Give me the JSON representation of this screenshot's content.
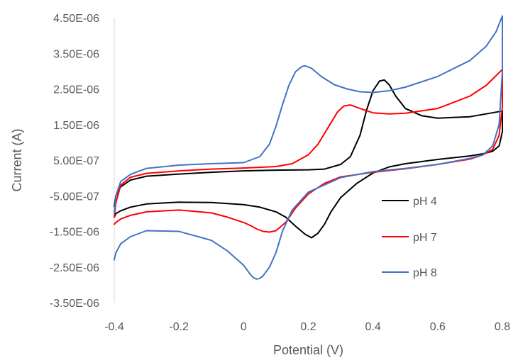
{
  "chart_data": {
    "type": "line",
    "title": "",
    "xlabel": "Potential (V)",
    "ylabel": "Current (A)",
    "xlim": [
      -0.4,
      0.8
    ],
    "ylim": [
      -3.5e-06,
      4.5e-06
    ],
    "x_ticks": [
      "-0.4",
      "-0.2",
      "0",
      "0.2",
      "0.4",
      "0.6",
      "0.8"
    ],
    "x_tick_values": [
      -0.4,
      -0.2,
      0,
      0.2,
      0.4,
      0.6,
      0.8
    ],
    "y_ticks": [
      "-3.50E-06",
      "-2.50E-06",
      "-1.50E-06",
      "-5.00E-07",
      "5.00E-07",
      "1.50E-06",
      "2.50E-06",
      "3.50E-06",
      "4.50E-06"
    ],
    "y_tick_values": [
      -3.5e-06,
      -2.5e-06,
      -1.5e-06,
      -5e-07,
      5e-07,
      1.5e-06,
      2.5e-06,
      3.5e-06,
      4.5e-06
    ],
    "grid": false,
    "legend_position": "right",
    "series": [
      {
        "name": "pH 4",
        "color": "#000000",
        "x": [
          -0.4,
          -0.395,
          -0.38,
          -0.35,
          -0.3,
          -0.2,
          -0.1,
          0,
          0.1,
          0.2,
          0.25,
          0.3,
          0.33,
          0.36,
          0.38,
          0.4,
          0.42,
          0.435,
          0.45,
          0.47,
          0.5,
          0.55,
          0.6,
          0.7,
          0.8,
          0.8,
          0.79,
          0.77,
          0.74,
          0.7,
          0.65,
          0.6,
          0.5,
          0.45,
          0.4,
          0.35,
          0.3,
          0.27,
          0.25,
          0.23,
          0.21,
          0.19,
          0.16,
          0.13,
          0.1,
          0.05,
          0,
          -0.1,
          -0.2,
          -0.3,
          -0.35,
          -0.38,
          -0.395,
          -0.4
        ],
        "y": [
          -8e-07,
          -5e-07,
          -2.5e-07,
          -6e-08,
          5e-08,
          1.1e-07,
          1.6e-07,
          2e-07,
          2.2e-07,
          2.3e-07,
          2.5e-07,
          3.8e-07,
          6e-07,
          1.2e-06,
          1.9e-06,
          2.45e-06,
          2.72e-06,
          2.75e-06,
          2.62e-06,
          2.3e-06,
          1.95e-06,
          1.75e-06,
          1.68e-06,
          1.72e-06,
          1.88e-06,
          1.3e-06,
          9e-07,
          7.5e-07,
          6.8e-07,
          6.2e-07,
          5.7e-07,
          5.2e-07,
          4e-07,
          3.1e-07,
          1.4e-07,
          -1.5e-07,
          -5.5e-07,
          -9.5e-07,
          -1.3e-06,
          -1.55e-06,
          -1.68e-06,
          -1.58e-06,
          -1.35e-06,
          -1.1e-06,
          -9.5e-07,
          -8.2e-07,
          -7.5e-07,
          -6.9e-07,
          -6.8e-07,
          -7.3e-07,
          -8.2e-07,
          -9.2e-07,
          -1e-06,
          -1.1e-06
        ]
      },
      {
        "name": "pH 7",
        "color": "#ff0000",
        "x": [
          -0.4,
          -0.395,
          -0.38,
          -0.35,
          -0.3,
          -0.2,
          -0.1,
          0,
          0.1,
          0.15,
          0.2,
          0.23,
          0.26,
          0.29,
          0.31,
          0.33,
          0.36,
          0.4,
          0.45,
          0.5,
          0.6,
          0.7,
          0.75,
          0.8,
          0.8,
          0.79,
          0.77,
          0.74,
          0.7,
          0.6,
          0.5,
          0.4,
          0.3,
          0.25,
          0.2,
          0.16,
          0.13,
          0.1,
          0.08,
          0.06,
          0.04,
          0.02,
          0,
          -0.05,
          -0.1,
          -0.2,
          -0.3,
          -0.35,
          -0.38,
          -0.395,
          -0.4
        ],
        "y": [
          -1.1e-06,
          -7e-07,
          -2e-07,
          2e-08,
          1.3e-07,
          2e-07,
          2.5e-07,
          2.8e-07,
          3.2e-07,
          4e-07,
          6.5e-07,
          9.5e-07,
          1.4e-06,
          1.85e-06,
          2.02e-06,
          2.05e-06,
          1.95e-06,
          1.83e-06,
          1.8e-06,
          1.82e-06,
          1.95e-06,
          2.3e-06,
          2.6e-06,
          3.05e-06,
          2e-06,
          1.2e-06,
          8e-07,
          6.5e-07,
          5.3e-07,
          3.8e-07,
          2.6e-07,
          1.6e-07,
          3e-08,
          -1.5e-07,
          -4.5e-07,
          -8.5e-07,
          -1.25e-06,
          -1.48e-06,
          -1.52e-06,
          -1.5e-06,
          -1.43e-06,
          -1.33e-06,
          -1.25e-06,
          -1.1e-06,
          -9.8e-07,
          -9e-07,
          -9.5e-07,
          -1.05e-06,
          -1.15e-06,
          -1.25e-06,
          -1.3e-06
        ]
      },
      {
        "name": "pH 8",
        "color": "#4472c4",
        "x": [
          -0.4,
          -0.395,
          -0.38,
          -0.35,
          -0.3,
          -0.2,
          -0.1,
          0,
          0.05,
          0.08,
          0.1,
          0.12,
          0.14,
          0.16,
          0.18,
          0.19,
          0.21,
          0.24,
          0.28,
          0.32,
          0.36,
          0.4,
          0.45,
          0.5,
          0.6,
          0.7,
          0.75,
          0.78,
          0.8,
          0.8,
          0.79,
          0.77,
          0.74,
          0.7,
          0.6,
          0.5,
          0.4,
          0.3,
          0.2,
          0.15,
          0.12,
          0.1,
          0.08,
          0.06,
          0.05,
          0.04,
          0.03,
          0.02,
          0,
          -0.05,
          -0.1,
          -0.2,
          -0.3,
          -0.35,
          -0.38,
          -0.395,
          -0.4
        ],
        "y": [
          -1e-06,
          -5e-07,
          -1e-07,
          1e-07,
          2.7e-07,
          3.6e-07,
          4e-07,
          4.3e-07,
          6e-07,
          9.5e-07,
          1.45e-06,
          2.05e-06,
          2.6e-06,
          2.98e-06,
          3.13e-06,
          3.15e-06,
          3.08e-06,
          2.85e-06,
          2.62e-06,
          2.5e-06,
          2.42e-06,
          2.4e-06,
          2.45e-06,
          2.55e-06,
          2.85e-06,
          3.3e-06,
          3.7e-06,
          4.1e-06,
          4.55e-06,
          3e-06,
          1.5e-06,
          9e-07,
          6.5e-07,
          5.5e-07,
          3.8e-07,
          2.7e-07,
          1.8e-07,
          1e-08,
          -4e-07,
          -9e-07,
          -1.5e-06,
          -2.1e-06,
          -2.5e-06,
          -2.75e-06,
          -2.82e-06,
          -2.84e-06,
          -2.8e-06,
          -2.7e-06,
          -2.45e-06,
          -2.05e-06,
          -1.75e-06,
          -1.5e-06,
          -1.48e-06,
          -1.65e-06,
          -1.85e-06,
          -2.1e-06,
          -2.3e-06
        ]
      }
    ]
  }
}
